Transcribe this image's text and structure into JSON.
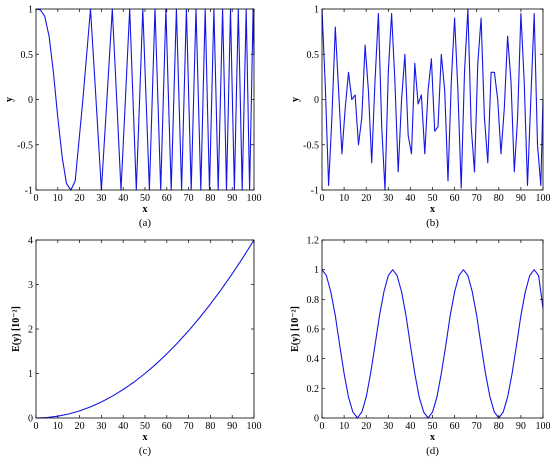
{
  "chart_data": [
    {
      "type": "line",
      "panel_label": "(a)",
      "xlabel": "x",
      "ylabel": "y",
      "xlim": [
        0,
        100
      ],
      "ylim": [
        -1,
        1
      ],
      "xticks": [
        0,
        10,
        20,
        30,
        40,
        50,
        60,
        70,
        80,
        90,
        100
      ],
      "yticks": [
        -1,
        -0.5,
        0,
        0.5,
        1
      ],
      "xtick_labels": [
        "0",
        "10",
        "20",
        "30",
        "40",
        "50",
        "60",
        "70",
        "80",
        "90",
        "100"
      ],
      "ytick_labels": [
        "-1",
        "-0.5",
        "0",
        "0.5",
        "1"
      ],
      "line_color": "#1515e6",
      "series": [
        {
          "x": [
            0,
            2,
            4,
            6,
            8,
            10,
            12,
            14,
            16,
            18,
            21.5,
            25,
            27.5,
            30,
            32.5,
            35,
            37,
            39,
            41,
            43,
            44.5,
            46,
            47.5,
            49,
            50.5,
            52,
            53.3,
            54.6,
            55.9,
            57.2,
            58.4,
            59.6,
            60.8,
            62,
            63.2,
            64.4,
            65.6,
            66.8,
            67.9,
            69,
            70.1,
            71.2,
            72.3,
            73.4,
            74.5,
            75.6,
            76.6,
            77.6,
            78.6,
            79.6,
            80.6,
            81.6,
            82.6,
            83.6,
            84.6,
            85.6,
            86.5,
            87.4,
            88.3,
            89.2,
            90.1,
            91,
            91.9,
            92.8,
            93.7,
            94.6,
            95.5,
            96.4,
            97.2,
            98,
            98.8,
            99.6,
            100
          ],
          "y": [
            1,
            0.99,
            0.92,
            0.7,
            0.3,
            -0.2,
            -0.64,
            -0.93,
            -1,
            -0.9,
            0,
            1,
            0,
            -1,
            0,
            1,
            0,
            -1,
            0,
            1,
            0,
            -1,
            0,
            1,
            0,
            -1,
            0,
            1,
            0,
            -1,
            0,
            1,
            0,
            -1,
            0,
            1,
            0,
            -1,
            0,
            1,
            0,
            -1,
            0,
            1,
            0,
            -1,
            0,
            1,
            0,
            -1,
            0,
            1,
            0,
            -1,
            0,
            1,
            0,
            -1,
            0,
            1,
            0,
            -1,
            0,
            1,
            0,
            -1,
            0,
            1,
            0,
            -1,
            0,
            1,
            0.5
          ]
        }
      ]
    },
    {
      "type": "line",
      "panel_label": "(b)",
      "xlabel": "x",
      "ylabel": "y",
      "xlim": [
        0,
        100
      ],
      "ylim": [
        -1,
        1
      ],
      "xticks": [
        0,
        10,
        20,
        30,
        40,
        50,
        60,
        70,
        80,
        90,
        100
      ],
      "yticks": [
        -1,
        -0.5,
        0,
        0.5,
        1
      ],
      "xtick_labels": [
        "0",
        "10",
        "20",
        "30",
        "40",
        "50",
        "60",
        "70",
        "80",
        "90",
        "100"
      ],
      "ytick_labels": [
        "-1",
        "-0.5",
        "0",
        "0.5",
        "1"
      ],
      "line_color": "#1515e6",
      "series": [
        {
          "x": [
            0,
            1.5,
            3,
            4.5,
            6,
            7.5,
            9,
            10.5,
            12,
            13.5,
            15,
            16.5,
            18,
            19.5,
            21,
            22.5,
            24,
            25.5,
            27,
            28.5,
            30,
            31.5,
            33,
            34.5,
            36,
            37.5,
            39,
            40.5,
            42,
            43.5,
            45,
            46.5,
            48,
            49.5,
            51,
            52.5,
            54,
            55.5,
            57,
            58.5,
            60,
            61.5,
            63,
            64.5,
            66,
            67.5,
            69,
            70.5,
            72,
            73.5,
            75,
            76.5,
            78,
            79.5,
            81,
            82.5,
            84,
            85.5,
            87,
            88.5,
            90,
            91.5,
            93,
            94.5,
            96,
            97.5,
            99,
            100
          ],
          "y": [
            1,
            0.15,
            -0.95,
            -0.2,
            0.8,
            0.1,
            -0.6,
            -0.1,
            0.3,
            0,
            0.05,
            -0.5,
            -0.2,
            0.6,
            0.1,
            -0.7,
            0.2,
            0.95,
            -0.3,
            -1,
            0.3,
            0.95,
            0.2,
            -0.8,
            0,
            0.5,
            -0.4,
            -0.6,
            0.4,
            -0.05,
            0.05,
            -0.6,
            0.1,
            0.45,
            -0.35,
            -0.3,
            0.5,
            0.1,
            -0.9,
            0.2,
            0.9,
            0.1,
            -0.98,
            0.3,
            1,
            -0.3,
            -0.8,
            0.4,
            0.9,
            -0.2,
            -0.7,
            0.3,
            0.3,
            0,
            -0.6,
            -0.1,
            0.7,
            0.2,
            -0.8,
            -0.2,
            0.95,
            0.2,
            -0.95,
            0,
            0.95,
            -0.5,
            -0.95,
            0
          ]
        }
      ]
    },
    {
      "type": "line",
      "panel_label": "(c)",
      "xlabel": "x",
      "ylabel": "E(y) [10⁻²]",
      "xlim": [
        0,
        100
      ],
      "ylim": [
        0,
        4
      ],
      "xticks": [
        0,
        10,
        20,
        30,
        40,
        50,
        60,
        70,
        80,
        90,
        100
      ],
      "yticks": [
        0,
        1,
        2,
        3,
        4
      ],
      "xtick_labels": [
        "0",
        "10",
        "20",
        "30",
        "40",
        "50",
        "60",
        "70",
        "80",
        "90",
        "100"
      ],
      "ytick_labels": [
        "0",
        "1",
        "2",
        "3",
        "4"
      ],
      "line_color": "#1515e6",
      "series": [
        {
          "x": [
            0,
            5,
            10,
            15,
            20,
            25,
            30,
            35,
            40,
            45,
            50,
            55,
            60,
            65,
            70,
            75,
            80,
            85,
            90,
            95,
            100
          ],
          "y": [
            0,
            0.01,
            0.04,
            0.09,
            0.16,
            0.25,
            0.36,
            0.49,
            0.64,
            0.81,
            1,
            1.21,
            1.44,
            1.69,
            1.96,
            2.25,
            2.56,
            2.89,
            3.24,
            3.61,
            4
          ]
        }
      ]
    },
    {
      "type": "line",
      "panel_label": "(d)",
      "xlabel": "x",
      "ylabel": "E(y) [10⁻²]",
      "xlim": [
        0,
        100
      ],
      "ylim": [
        0,
        1.2
      ],
      "xticks": [
        0,
        10,
        20,
        30,
        40,
        50,
        60,
        70,
        80,
        90,
        100
      ],
      "yticks": [
        0,
        0.2,
        0.4,
        0.6,
        0.8,
        1,
        1.2
      ],
      "xtick_labels": [
        "0",
        "10",
        "20",
        "30",
        "40",
        "50",
        "60",
        "70",
        "80",
        "90",
        "100"
      ],
      "ytick_labels": [
        "0",
        "0.2",
        "0.4",
        "0.6",
        "0.8",
        "1",
        "1.2"
      ],
      "line_color": "#1515e6",
      "series": [
        {
          "x": [
            0,
            2,
            4,
            6,
            8,
            10,
            12,
            14,
            16,
            18,
            20,
            22,
            24,
            26,
            28,
            30,
            32,
            34,
            36,
            38,
            40,
            42,
            44,
            46,
            48,
            50,
            52,
            54,
            56,
            58,
            60,
            62,
            64,
            66,
            68,
            70,
            72,
            74,
            76,
            78,
            80,
            82,
            84,
            86,
            88,
            90,
            92,
            94,
            96,
            98,
            100
          ],
          "y": [
            1,
            0.96,
            0.85,
            0.69,
            0.49,
            0.3,
            0.14,
            0.04,
            0,
            0.04,
            0.14,
            0.3,
            0.49,
            0.69,
            0.85,
            0.96,
            1,
            0.96,
            0.85,
            0.69,
            0.49,
            0.3,
            0.14,
            0.04,
            0,
            0.04,
            0.14,
            0.3,
            0.49,
            0.69,
            0.85,
            0.96,
            1,
            0.96,
            0.85,
            0.69,
            0.49,
            0.3,
            0.14,
            0.04,
            0,
            0.04,
            0.14,
            0.3,
            0.49,
            0.69,
            0.85,
            0.96,
            1,
            0.96,
            0.74
          ]
        }
      ]
    }
  ]
}
